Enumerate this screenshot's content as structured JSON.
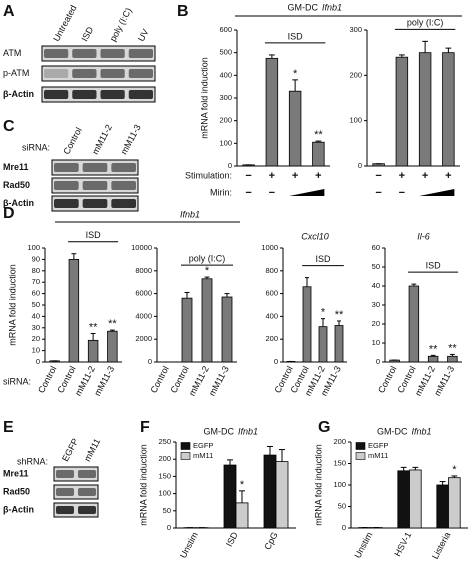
{
  "panels": [
    "A",
    "B",
    "C",
    "D",
    "E",
    "F",
    "G"
  ],
  "blots": [
    {
      "columns": [
        "Untreated",
        "ISD",
        "poly (I:C)",
        "UV"
      ],
      "rows": [
        "ATM",
        "p-ATM",
        "β-Actin"
      ]
    },
    {
      "lane_label": "siRNA:",
      "columns": [
        "Control",
        "mM11-2",
        "mM11-3"
      ],
      "rows": [
        "Mre11",
        "Rad50",
        "β-Actin"
      ]
    },
    {
      "lane_label": "shRNA:",
      "columns": [
        "EGFP",
        "mM11"
      ],
      "rows": [
        "Mre11",
        "Rad50",
        "β-Actin"
      ]
    }
  ],
  "panel_b": {
    "title": "GM-DC",
    "gene": "Ifnb1",
    "row_labels": [
      "Stimulation:",
      "Mirin:"
    ]
  },
  "panel_d": {
    "gene": "Ifnb1",
    "lane_label": "siRNA:"
  },
  "chart_data": [
    {
      "type": "bar",
      "subtitle": "ISD",
      "y_label": "mRNA fold induction",
      "categories": [
        null,
        null,
        null,
        null
      ],
      "values": [
        5,
        475,
        330,
        105
      ],
      "errors": [
        0,
        15,
        50,
        5
      ],
      "annotations": [
        null,
        null,
        "*",
        "**"
      ],
      "stimulation": [
        "−",
        "+",
        "+",
        "+"
      ],
      "mirin": [
        "−",
        "−",
        null,
        null
      ],
      "ylim": [
        0,
        600
      ],
      "yticks": [
        0,
        100,
        200,
        300,
        400,
        500,
        600
      ],
      "color": "#7a7a7a"
    },
    {
      "type": "bar",
      "subtitle": "poly (I:C)",
      "categories": [
        null,
        null,
        null,
        null
      ],
      "values": [
        5,
        240,
        250,
        250
      ],
      "errors": [
        0,
        5,
        25,
        10
      ],
      "annotations": [
        null,
        null,
        null,
        null
      ],
      "stimulation": [
        "−",
        "+",
        "+",
        "+"
      ],
      "mirin": [
        "−",
        "−",
        null,
        null
      ],
      "ylim": [
        0,
        300
      ],
      "yticks": [
        0,
        100,
        200,
        300
      ],
      "color": "#7a7a7a"
    },
    {
      "type": "bar",
      "subtitle": "ISD",
      "y_label": "mRNA fold induction",
      "categories": [
        "Control",
        "Control",
        "mM11-2",
        "mM11-3"
      ],
      "values": [
        1,
        90,
        19,
        27
      ],
      "errors": [
        0,
        5,
        6,
        1
      ],
      "annotations": [
        null,
        null,
        "**",
        "**"
      ],
      "ylim": [
        0,
        100
      ],
      "yticks": [
        0,
        10,
        20,
        30,
        40,
        50,
        60,
        70,
        80,
        90,
        100
      ],
      "color": "#7a7a7a"
    },
    {
      "type": "bar",
      "subtitle": "poly (I:C)",
      "categories": [
        "Control",
        "Control",
        "mM11-2",
        "mM11-3"
      ],
      "values": [
        0,
        5600,
        7300,
        5700
      ],
      "errors": [
        0,
        500,
        150,
        300
      ],
      "annotations": [
        null,
        null,
        "*",
        null
      ],
      "ylim": [
        0,
        10000
      ],
      "yticks": [
        0,
        2000,
        4000,
        6000,
        8000,
        10000
      ],
      "color": "#7a7a7a"
    },
    {
      "type": "bar",
      "gene": "Cxcl10",
      "subtitle": "ISD",
      "categories": [
        "Control",
        "Control",
        "mM11-2",
        "mM11-3"
      ],
      "values": [
        5,
        660,
        310,
        320
      ],
      "errors": [
        0,
        80,
        70,
        40
      ],
      "annotations": [
        null,
        null,
        "*",
        "**"
      ],
      "ylim": [
        0,
        1000
      ],
      "yticks": [
        0,
        200,
        400,
        600,
        800,
        1000
      ],
      "color": "#7a7a7a"
    },
    {
      "type": "bar",
      "gene": "Il-6",
      "subtitle": "ISD",
      "categories": [
        "Control",
        "Control",
        "mM11-2",
        "mM11-3"
      ],
      "values": [
        1,
        40,
        3,
        3
      ],
      "errors": [
        0,
        1,
        0.5,
        1
      ],
      "annotations": [
        null,
        null,
        "**",
        "**"
      ],
      "ylim": [
        0,
        60
      ],
      "yticks": [
        0,
        10,
        20,
        30,
        40,
        50,
        60
      ],
      "color": "#7a7a7a"
    },
    {
      "type": "grouped_bar",
      "title": "GM-DC",
      "gene": "Ifnb1",
      "y_label": "mRNA fold induction",
      "categories": [
        "Unstim",
        "ISD",
        "CpG"
      ],
      "series": [
        {
          "name": "EGFP",
          "color": "#111111",
          "values": [
            1,
            183,
            212
          ],
          "errors": [
            0,
            15,
            25
          ],
          "annotations": [
            null,
            null,
            null
          ]
        },
        {
          "name": "mM11",
          "color": "#cccccc",
          "values": [
            1,
            73,
            193
          ],
          "errors": [
            0,
            35,
            35
          ],
          "annotations": [
            null,
            "*",
            null
          ]
        }
      ],
      "ylim": [
        0,
        250
      ],
      "yticks": [
        0,
        50,
        100,
        150,
        200,
        250
      ],
      "legend": "top-left"
    },
    {
      "type": "grouped_bar",
      "title": "GM-DC",
      "gene": "Ifnb1",
      "y_label": "mRNA fold induction",
      "categories": [
        "Unstim",
        "HSV-1",
        "Listeria"
      ],
      "series": [
        {
          "name": "EGFP",
          "color": "#111111",
          "values": [
            1,
            133,
            100
          ],
          "errors": [
            0,
            8,
            8
          ],
          "annotations": [
            null,
            null,
            null
          ]
        },
        {
          "name": "mM11",
          "color": "#cccccc",
          "values": [
            1,
            135,
            117
          ],
          "errors": [
            0,
            6,
            4
          ],
          "annotations": [
            null,
            null,
            "*"
          ]
        }
      ],
      "ylim": [
        0,
        200
      ],
      "yticks": [
        0,
        50,
        100,
        150,
        200
      ],
      "legend": "top-left"
    }
  ]
}
